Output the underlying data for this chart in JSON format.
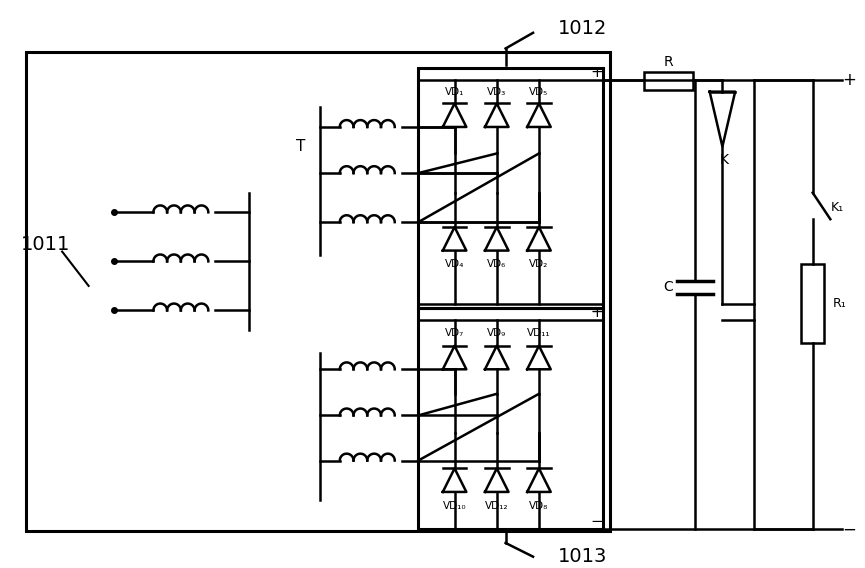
{
  "bg_color": "#ffffff",
  "line_color": "#000000",
  "line_width": 1.8,
  "fig_width": 8.65,
  "fig_height": 5.68,
  "labels": {
    "L1011": "1011",
    "L1012": "1012",
    "L1013": "1013",
    "T": "T",
    "R": "R",
    "K": "K",
    "K1": "K₁",
    "C": "C",
    "R1": "R₁",
    "VD1": "VD₁",
    "VD2": "VD₂",
    "VD3": "VD₃",
    "VD4": "VD₄",
    "VD5": "VD₅",
    "VD6": "VD₆",
    "VD7": "VD₇",
    "VD8": "VD₈",
    "VD9": "VD₉",
    "VD10": "VD₁₀",
    "VD11": "VD₁₁",
    "VD12": "VD₁₂"
  }
}
